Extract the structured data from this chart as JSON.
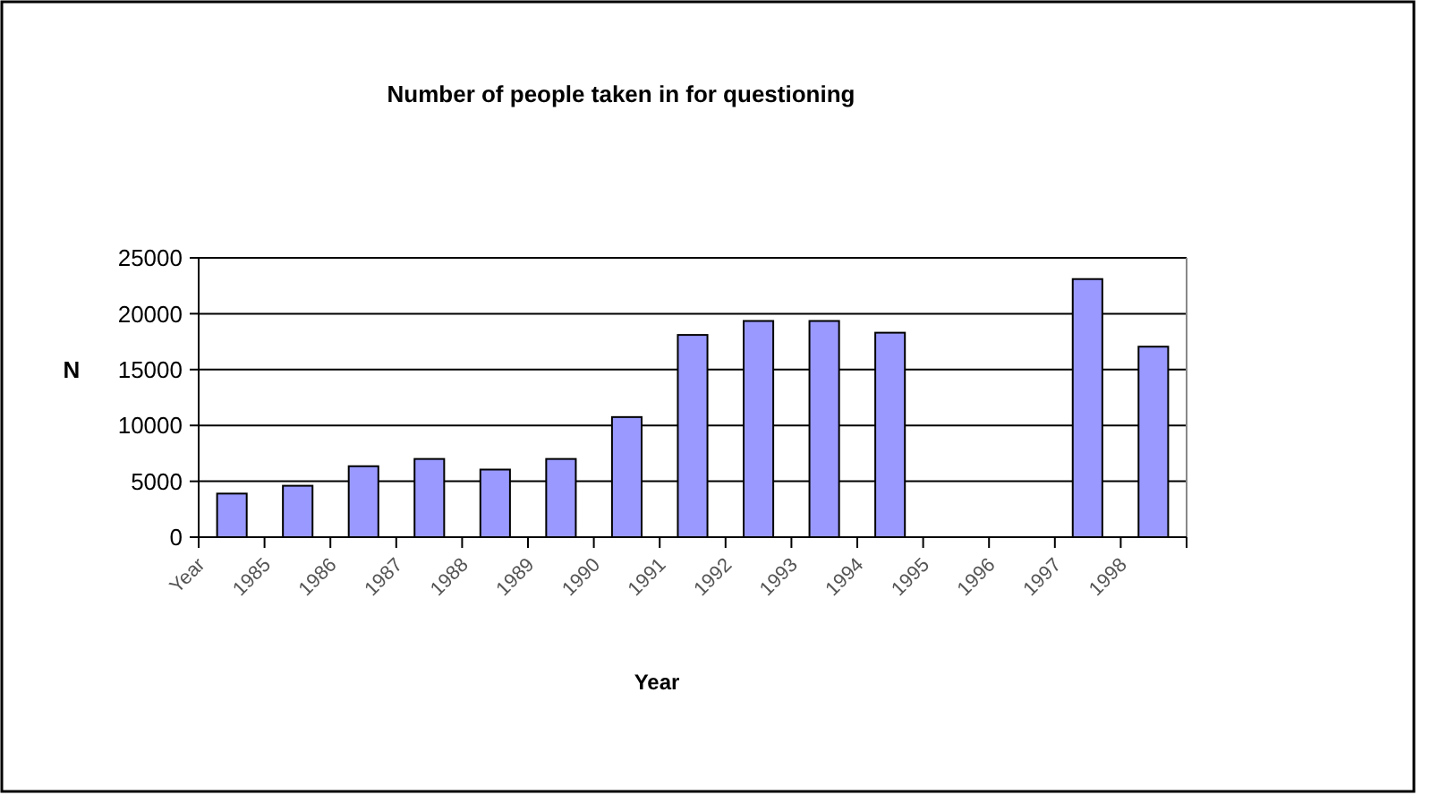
{
  "chart_data": {
    "type": "bar",
    "title": "Number of people taken in for questioning",
    "xlabel": "Year",
    "ylabel": "N",
    "categories": [
      "Year",
      "1985",
      "1986",
      "1987",
      "1988",
      "1989",
      "1990",
      "1991",
      "1992",
      "1993",
      "1994",
      "1995",
      "1996",
      "1997",
      "1998"
    ],
    "values": [
      3900,
      4600,
      6350,
      7000,
      6050,
      7000,
      10750,
      18100,
      19350,
      19350,
      18300,
      null,
      null,
      23100,
      17050
    ],
    "color": "#9999ff",
    "ylim": [
      0,
      25000
    ],
    "yticks": [
      0,
      5000,
      10000,
      15000,
      20000,
      25000
    ],
    "grid": "y"
  }
}
